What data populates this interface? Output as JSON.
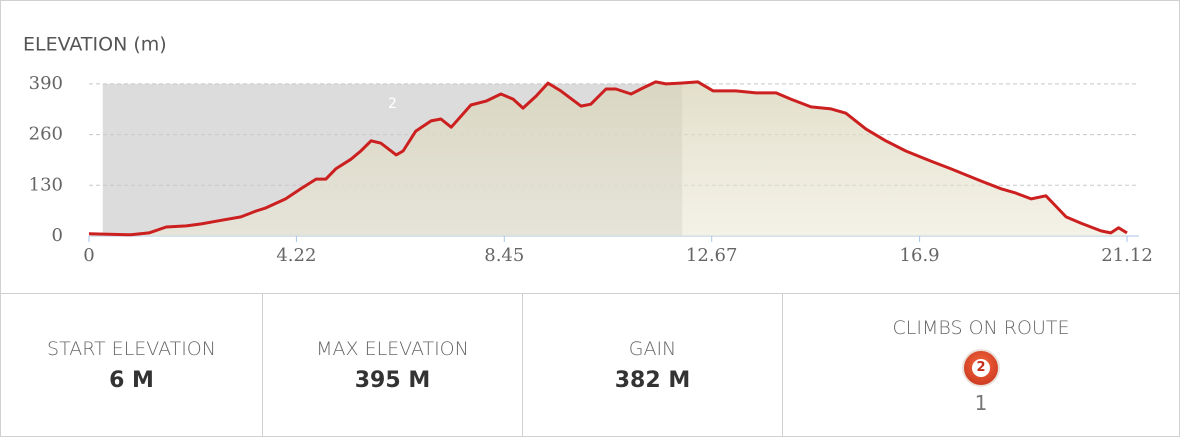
{
  "chart_data": {
    "type": "area",
    "title": "ELEVATION (m)",
    "x": [
      0,
      0.85,
      1.22,
      1.57,
      1.98,
      2.29,
      2.59,
      3.09,
      3.4,
      3.6,
      4.0,
      4.31,
      4.62,
      4.82,
      5.02,
      5.33,
      5.53,
      5.74,
      5.94,
      6.25,
      6.39,
      6.65,
      6.96,
      7.16,
      7.37,
      7.77,
      8.08,
      8.38,
      8.63,
      8.83,
      9.1,
      9.34,
      9.6,
      10.01,
      10.21,
      10.52,
      10.72,
      11.03,
      11.23,
      11.53,
      11.74,
      12.04,
      12.39,
      12.7,
      13.16,
      13.57,
      13.98,
      14.28,
      14.69,
      15.1,
      15.4,
      15.81,
      16.21,
      16.62,
      17.13,
      17.54,
      18.15,
      18.56,
      18.86,
      19.17,
      19.47,
      19.67,
      19.88,
      20.18,
      20.59,
      20.79,
      20.95,
      21.12
    ],
    "values": [
      6,
      3,
      8,
      23,
      26,
      31,
      38,
      49,
      64,
      72,
      95,
      121,
      146,
      146,
      172,
      197,
      218,
      244,
      238,
      208,
      218,
      269,
      295,
      300,
      279,
      336,
      346,
      364,
      351,
      328,
      359,
      392,
      372,
      333,
      338,
      377,
      377,
      364,
      377,
      395,
      390,
      392,
      395,
      372,
      372,
      367,
      367,
      351,
      331,
      326,
      315,
      274,
      244,
      218,
      192,
      172,
      141,
      121,
      110,
      95,
      103,
      77,
      49,
      33,
      13,
      8,
      21,
      8
    ],
    "color": "#cc1f1f",
    "xlim": [
      0,
      21.12
    ],
    "xticks": [
      0,
      4.22,
      8.45,
      12.67,
      16.9,
      21.12
    ],
    "ylim": [
      0,
      400
    ],
    "yticks": [
      0,
      130,
      260,
      390
    ],
    "grid": true,
    "climb": {
      "label": "2",
      "start": 0.28,
      "end": 12.07
    }
  },
  "stats": [
    {
      "label": "START ELEVATION",
      "value": "6 M"
    },
    {
      "label": "MAX ELEVATION",
      "value": "395 M"
    },
    {
      "label": "GAIN",
      "value": "382 M"
    },
    {
      "label": "CLIMBS ON ROUTE",
      "badge": "2",
      "value": "1"
    }
  ]
}
